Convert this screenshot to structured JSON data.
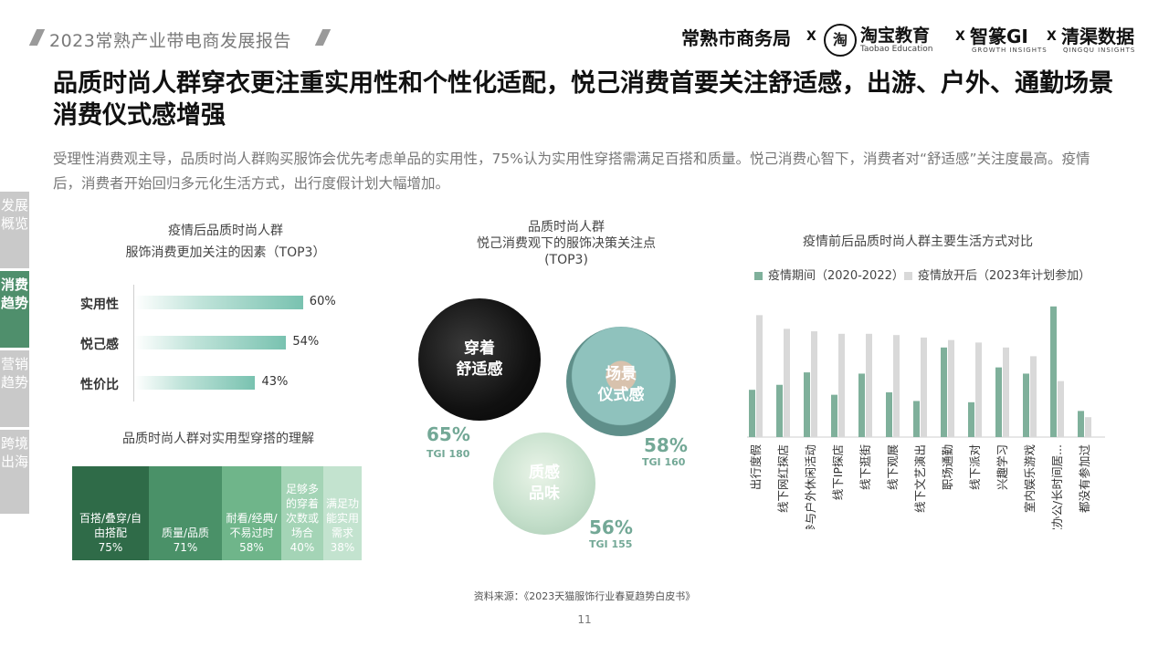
{
  "header": {
    "report_title": "2023常熟产业带电商发展报告",
    "partners": {
      "p1": "常熟市商务局",
      "x": "X",
      "taobao_logo": "淘",
      "p2": "淘宝教育",
      "p2_sub": "Taobao Education",
      "p3": "智篆GI",
      "p3_sub": "GROWTH INSIGHTS",
      "p4": "清渠数据",
      "p4_sub": "QINGQU INSIGHTS"
    }
  },
  "title": "品质时尚人群穿衣更注重实用性和个性化适配，悦己消费首要关注舒适感，出游、户外、通勤场景消费仪式感增强",
  "summary": "受理性消费观主导，品质时尚人群购买服饰会优先考虑单品的实用性，75%认为实用性穿搭需满足百搭和质量。悦己消费心智下，消费者对“舒适感”关注度最高。疫情后，消费者开始回归多元化生活方式，出行度假计划大幅增加。",
  "sidenav": [
    {
      "label": "发展概览",
      "active": false
    },
    {
      "label": "消费趋势",
      "active": true
    },
    {
      "label": "营销趋势",
      "active": false
    },
    {
      "label": "跨境出海",
      "active": false
    }
  ],
  "chart_data": [
    {
      "type": "bar",
      "orientation": "horizontal",
      "title_line1": "疫情后品质时尚人群",
      "title_line2": "服饰消费更加关注的因素（TOP3）",
      "categories": [
        "实用性",
        "悦己感",
        "性价比"
      ],
      "values": [
        60,
        54,
        43
      ],
      "value_labels": [
        "60%",
        "54%",
        "43%"
      ],
      "xlim": [
        0,
        100
      ]
    },
    {
      "type": "table",
      "title": "品质时尚人群对实用型穿搭的理解",
      "cells": [
        {
          "label": "百搭/叠穿/自由搭配",
          "value": "75%",
          "color": "#2f6b48"
        },
        {
          "label": "质量/品质",
          "value": "71%",
          "color": "#4a9168"
        },
        {
          "label": "耐看/经典/不易过时",
          "value": "58%",
          "color": "#6fb58a"
        },
        {
          "label": "足够多的穿着次数或场合",
          "value": "40%",
          "color": "#a4d4b6"
        },
        {
          "label": "满足功能实用需求",
          "value": "38%",
          "color": "#c3e3cf"
        }
      ]
    },
    {
      "type": "bubble",
      "title_line1": "品质时尚人群",
      "title_line2": "悦己消费观下的服饰决策关注点",
      "title_line3": "(TOP3)",
      "items": [
        {
          "label_l1": "穿着",
          "label_l2": "舒适感",
          "pct": "65%",
          "tgi": "TGI 180"
        },
        {
          "label_l1": "场景",
          "label_l2": "仪式感",
          "pct": "58%",
          "tgi": "TGI 160"
        },
        {
          "label_l1": "质感",
          "label_l2": "品味",
          "pct": "56%",
          "tgi": "TGI 155"
        }
      ]
    },
    {
      "type": "bar",
      "title": "疫情前后品质时尚人群主要生活方式对比",
      "legend_position": "top",
      "categories": [
        "出行度假",
        "线下网红探店",
        "参与户外休闲活动",
        "线下IP探店",
        "线下逛街",
        "线下观展",
        "线下文艺演出",
        "职场通勤",
        "线下派对",
        "兴趣学习",
        "室内娱乐游戏",
        "居家办公/长时间居...",
        "都没有参加过"
      ],
      "series": [
        {
          "name": "疫情期间（2020-2022）",
          "color": "#7fb09b",
          "values": [
            38,
            42,
            52,
            34,
            51,
            36,
            29,
            72,
            28,
            56,
            51,
            105,
            21
          ]
        },
        {
          "name": "疫情放开后（2023年计划参加）",
          "color": "#d9d9d9",
          "values": [
            98,
            87,
            85,
            83,
            83,
            82,
            80,
            78,
            76,
            72,
            65,
            45,
            16
          ]
        }
      ],
      "ylim": [
        0,
        110
      ]
    }
  ],
  "source": "资料来源：《2023天猫服饰行业春夏趋势白皮书》",
  "page_number": "11"
}
